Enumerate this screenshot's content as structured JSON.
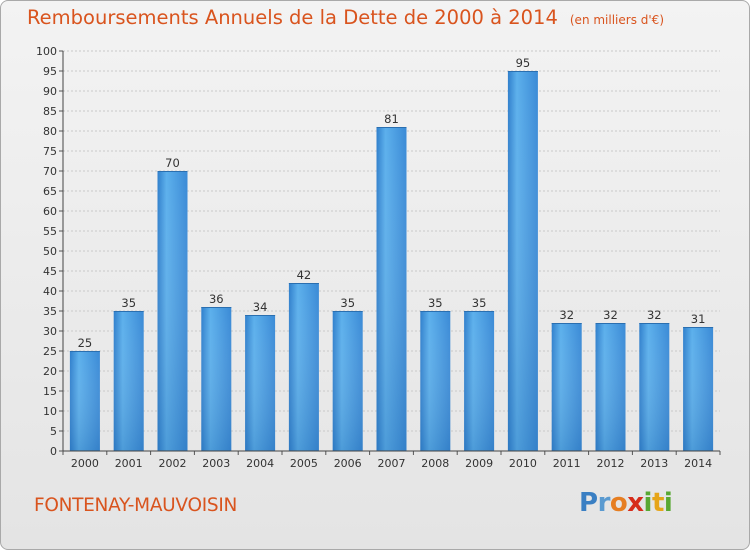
{
  "chart_data": {
    "type": "bar",
    "title": "Remboursements Annuels de la Dette de 2000 à 2014",
    "subtitle": "(en milliers d'€)",
    "categories": [
      "2000",
      "2001",
      "2002",
      "2003",
      "2004",
      "2005",
      "2006",
      "2007",
      "2008",
      "2009",
      "2010",
      "2011",
      "2012",
      "2013",
      "2014"
    ],
    "values": [
      25,
      35,
      70,
      36,
      34,
      42,
      35,
      81,
      35,
      35,
      95,
      32,
      32,
      32,
      31
    ],
    "ylim": [
      0,
      100
    ],
    "yticks": [
      0,
      5,
      10,
      15,
      20,
      25,
      30,
      35,
      40,
      45,
      50,
      55,
      60,
      65,
      70,
      75,
      80,
      85,
      90,
      95,
      100
    ],
    "grid": true,
    "bar_color": "#3b8fd8",
    "bar_color_light": "#5cb0ec",
    "bar_color_dark": "#2a73bb",
    "text_color": "#d9541e"
  },
  "footer": {
    "city": "FONTENAY-MAUVOISIN",
    "logo_letters": [
      "P",
      "r",
      "o",
      "x",
      "i",
      "t",
      "i"
    ],
    "logo_colors": [
      "#3a7fc3",
      "#5a9ad0",
      "#e67e22",
      "#d62c1a",
      "#58a832",
      "#e6a519",
      "#58a832"
    ]
  }
}
